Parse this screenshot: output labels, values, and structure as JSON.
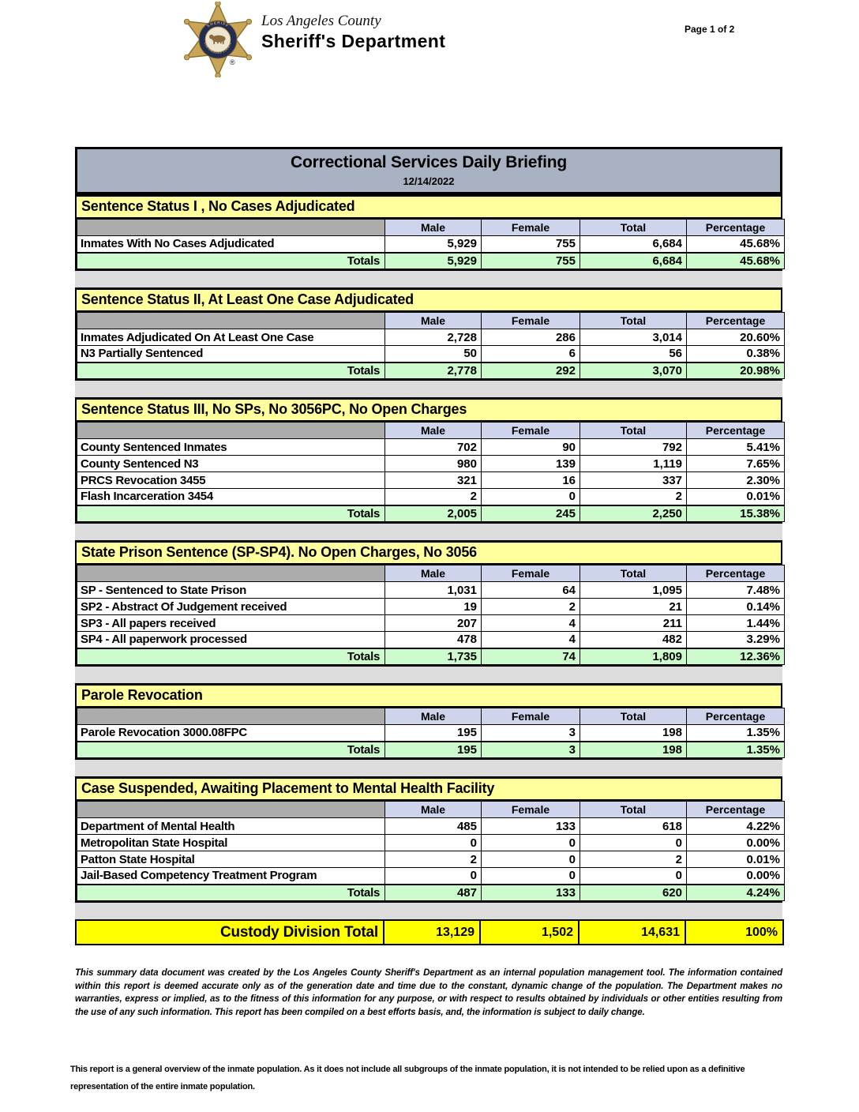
{
  "page": {
    "page_label": "Page 1 of 2"
  },
  "letterhead": {
    "county": "Los Angeles County",
    "department": "Sheriff's Department",
    "badge_icon": "la-county-sheriff-star-badge",
    "badge_ring_top": "SHERIFF",
    "badge_ring_bottom": "LOS ANGELES COUNTY",
    "registered_mark": "®"
  },
  "report": {
    "title": "Correctional Services Daily Briefing",
    "date": "12/14/2022",
    "columns": [
      "Male",
      "Female",
      "Total",
      "Percentage"
    ],
    "totals_label": "Totals",
    "sections": [
      {
        "title": "Sentence Status I , No Cases Adjudicated",
        "rows": [
          {
            "label": "Inmates With No Cases Adjudicated",
            "values": [
              "5,929",
              "755",
              "6,684",
              "45.68%"
            ]
          }
        ],
        "totals": [
          "5,929",
          "755",
          "6,684",
          "45.68%"
        ]
      },
      {
        "title": "Sentence Status II, At Least One Case Adjudicated",
        "rows": [
          {
            "label": "Inmates Adjudicated On At Least One Case",
            "values": [
              "2,728",
              "286",
              "3,014",
              "20.60%"
            ]
          },
          {
            "label": "N3 Partially Sentenced",
            "values": [
              "50",
              "6",
              "56",
              "0.38%"
            ]
          }
        ],
        "totals": [
          "2,778",
          "292",
          "3,070",
          "20.98%"
        ]
      },
      {
        "title": "Sentence Status III, No SPs, No 3056PC, No Open Charges",
        "rows": [
          {
            "label": "County Sentenced Inmates",
            "values": [
              "702",
              "90",
              "792",
              "5.41%"
            ]
          },
          {
            "label": "County Sentenced N3",
            "values": [
              "980",
              "139",
              "1,119",
              "7.65%"
            ]
          },
          {
            "label": "PRCS Revocation 3455",
            "values": [
              "321",
              "16",
              "337",
              "2.30%"
            ]
          },
          {
            "label": "Flash Incarceration 3454",
            "values": [
              "2",
              "0",
              "2",
              "0.01%"
            ]
          }
        ],
        "totals": [
          "2,005",
          "245",
          "2,250",
          "15.38%"
        ]
      },
      {
        "title": "State Prison Sentence (SP-SP4). No Open Charges, No 3056",
        "rows": [
          {
            "label": "SP - Sentenced to State Prison",
            "values": [
              "1,031",
              "64",
              "1,095",
              "7.48%"
            ]
          },
          {
            "label": "SP2 - Abstract Of Judgement received",
            "values": [
              "19",
              "2",
              "21",
              "0.14%"
            ]
          },
          {
            "label": "SP3 - All papers received",
            "values": [
              "207",
              "4",
              "211",
              "1.44%"
            ]
          },
          {
            "label": "SP4 - All paperwork processed",
            "values": [
              "478",
              "4",
              "482",
              "3.29%"
            ]
          }
        ],
        "totals": [
          "1,735",
          "74",
          "1,809",
          "12.36%"
        ]
      },
      {
        "title": "Parole Revocation",
        "rows": [
          {
            "label": "Parole Revocation 3000.08FPC",
            "values": [
              "195",
              "3",
              "198",
              "1.35%"
            ]
          }
        ],
        "totals": [
          "195",
          "3",
          "198",
          "1.35%"
        ]
      },
      {
        "title": "Case Suspended, Awaiting Placement to Mental Health Facility",
        "rows": [
          {
            "label": "Department of Mental Health",
            "values": [
              "485",
              "133",
              "618",
              "4.22%"
            ]
          },
          {
            "label": "Metropolitan State Hospital",
            "values": [
              "0",
              "0",
              "0",
              "0.00%"
            ]
          },
          {
            "label": "Patton State Hospital",
            "values": [
              "2",
              "0",
              "2",
              "0.01%"
            ]
          },
          {
            "label": "Jail-Based Competency Treatment Program",
            "values": [
              "0",
              "0",
              "0",
              "0.00%"
            ]
          }
        ],
        "totals": [
          "487",
          "133",
          "620",
          "4.24%"
        ]
      }
    ],
    "grand_total": {
      "label": "Custody Division Total",
      "values": [
        "13,129",
        "1,502",
        "14,631",
        "100%"
      ]
    }
  },
  "footer": {
    "disclaimer": "This summary data document was created by the Los Angeles County Sheriff's Department as an internal population management tool.  The information contained within this report is deemed accurate only as of the generation date and time due to the constant, dynamic change of the population.  The Department makes no warranties, express or implied, as to the fitness of this information for any purpose, or with respect to results obtained by individuals or other entities resulting from the use of any such information.  This report has been compiled on a best efforts basis, and, the information is subject to daily change.",
    "note": "This report is a general overview of the inmate population.  As it does not include all subgroups of the inmate population, it is not intended to be relied upon as a definitive representation of the entire inmate population."
  },
  "colors": {
    "title_bar": "#A8B2C3",
    "section_header": "#FFFF9E",
    "column_header": "#CDD4EC",
    "column_header_corner": "#ACACAC",
    "totals_row": "#CDFBCD",
    "grand_total_row": "#FFFF00",
    "spacer": "#DCDCDC",
    "badge_gold": "#C8A557",
    "badge_gold_dark": "#8A7030",
    "badge_navy": "#232C52",
    "badge_cream": "#EDE6CE"
  }
}
